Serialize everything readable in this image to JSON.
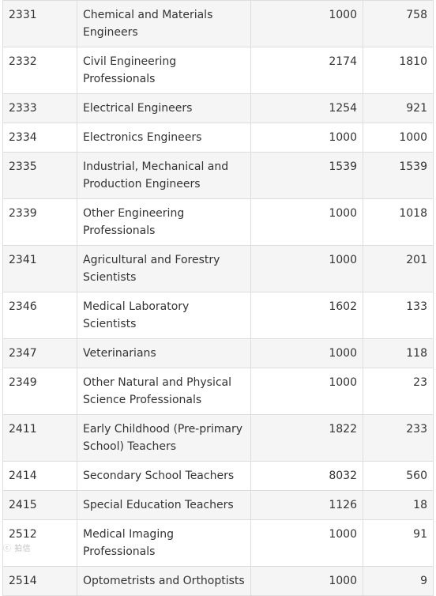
{
  "table": {
    "rows": [
      {
        "code": "2331",
        "name": "Chemical and Materials Engineers",
        "a": "1000",
        "b": "758"
      },
      {
        "code": "2332",
        "name": "Civil Engineering Professionals",
        "a": "2174",
        "b": "1810"
      },
      {
        "code": "2333",
        "name": "Electrical Engineers",
        "a": "1254",
        "b": "921"
      },
      {
        "code": "2334",
        "name": "Electronics Engineers",
        "a": "1000",
        "b": "1000"
      },
      {
        "code": "2335",
        "name": "Industrial, Mechanical and Production Engineers",
        "a": "1539",
        "b": "1539"
      },
      {
        "code": "2339",
        "name": "Other Engineering Professionals",
        "a": "1000",
        "b": "1018"
      },
      {
        "code": "2341",
        "name": "Agricultural and Forestry Scientists",
        "a": "1000",
        "b": "201"
      },
      {
        "code": "2346",
        "name": "Medical Laboratory Scientists",
        "a": "1602",
        "b": "133"
      },
      {
        "code": "2347",
        "name": "Veterinarians",
        "a": "1000",
        "b": "118"
      },
      {
        "code": "2349",
        "name": "Other Natural and Physical Science Professionals",
        "a": "1000",
        "b": "23"
      },
      {
        "code": "2411",
        "name": "Early Childhood (Pre-primary School) Teachers",
        "a": "1822",
        "b": "233"
      },
      {
        "code": "2414",
        "name": "Secondary School Teachers",
        "a": "8032",
        "b": "560"
      },
      {
        "code": "2415",
        "name": "Special Education Teachers",
        "a": "1126",
        "b": "18"
      },
      {
        "code": "2512",
        "name": "Medical Imaging Professionals",
        "a": "1000",
        "b": "91"
      },
      {
        "code": "2514",
        "name": "Optometrists and Orthoptists",
        "a": "1000",
        "b": "9"
      }
    ]
  },
  "watermark": {
    "text": "ⓒ 拍信"
  }
}
